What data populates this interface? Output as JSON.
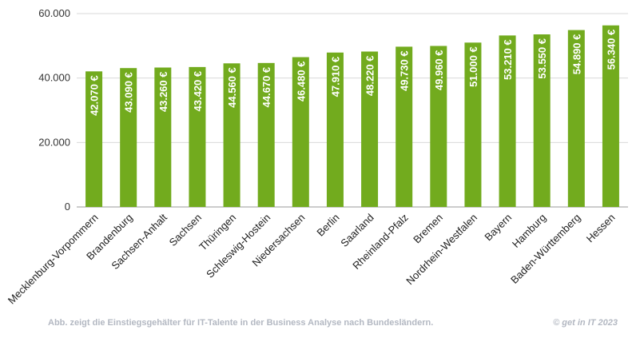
{
  "chart_data": {
    "type": "bar",
    "title": "",
    "xlabel": "",
    "ylabel": "",
    "ylim": [
      0,
      60000
    ],
    "y_ticks": [
      0,
      20000,
      40000,
      60000
    ],
    "y_tick_labels": [
      "0",
      "20.000",
      "40.000",
      "60.000"
    ],
    "grid": "horizontal",
    "legend": "none",
    "bar_color": "#72ab1e",
    "categories": [
      "Mecklenburg-Vorpommern",
      "Brandenburg",
      "Sachsen-Anhalt",
      "Sachsen",
      "Thüringen",
      "Schleswig-Hostein",
      "Niedersachsen",
      "Berlin",
      "Saarland",
      "Rheinland-Pfalz",
      "Bremen",
      "Nordrhein-Westfalen",
      "Bayern",
      "Hamburg",
      "Baden-Württemberg",
      "Hessen"
    ],
    "values": [
      42070,
      43090,
      43260,
      43420,
      44560,
      44670,
      46480,
      47910,
      48220,
      49730,
      49960,
      51000,
      53210,
      53550,
      54890,
      56340
    ],
    "value_labels": [
      "42.070 €",
      "43.090 €",
      "43.260 €",
      "43.420 €",
      "44.560 €",
      "44.670 €",
      "46.480 €",
      "47.910 €",
      "48.220 €",
      "49.730 €",
      "49.960 €",
      "51.000 €",
      "53.210 €",
      "53.550 €",
      "54.890 €",
      "56.340 €"
    ]
  },
  "footer": {
    "caption": "Abb. zeigt die Einstiegsgehälter für IT-Talente in der Business Analyse nach Bundesländern.",
    "credit": "© get in IT 2023"
  }
}
